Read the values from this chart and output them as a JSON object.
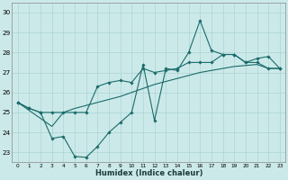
{
  "background_color": "#cce9e9",
  "grid_color": "#aad4d4",
  "line_color": "#1a6b6b",
  "ylim": [
    22.5,
    30.5
  ],
  "xlim": [
    -0.5,
    23.5
  ],
  "yticks": [
    23,
    24,
    25,
    26,
    27,
    28,
    29,
    30
  ],
  "xticks": [
    0,
    1,
    2,
    3,
    4,
    5,
    6,
    7,
    8,
    9,
    10,
    11,
    12,
    13,
    14,
    15,
    16,
    17,
    18,
    19,
    20,
    21,
    22,
    23
  ],
  "xlabel": "Humidex (Indice chaleur)",
  "series1_y": [
    25.5,
    25.2,
    25.0,
    23.7,
    23.8,
    22.8,
    22.75,
    23.3,
    24.0,
    24.5,
    25.0,
    27.4,
    24.6,
    27.2,
    27.1,
    28.0,
    29.6,
    28.1,
    27.9,
    27.9,
    27.5,
    27.7,
    27.8,
    27.2
  ],
  "series2_y": [
    25.5,
    25.2,
    25.0,
    25.0,
    25.0,
    25.0,
    25.0,
    26.3,
    26.5,
    26.6,
    26.5,
    27.2,
    27.0,
    27.1,
    27.2,
    27.5,
    27.5,
    27.5,
    27.9,
    27.9,
    27.5,
    27.5,
    27.2,
    27.2
  ],
  "series3_y": [
    25.5,
    25.1,
    24.7,
    24.3,
    25.0,
    25.2,
    25.35,
    25.5,
    25.65,
    25.8,
    26.0,
    26.2,
    26.4,
    26.55,
    26.7,
    26.85,
    27.0,
    27.1,
    27.2,
    27.3,
    27.35,
    27.4,
    27.2,
    27.2
  ]
}
